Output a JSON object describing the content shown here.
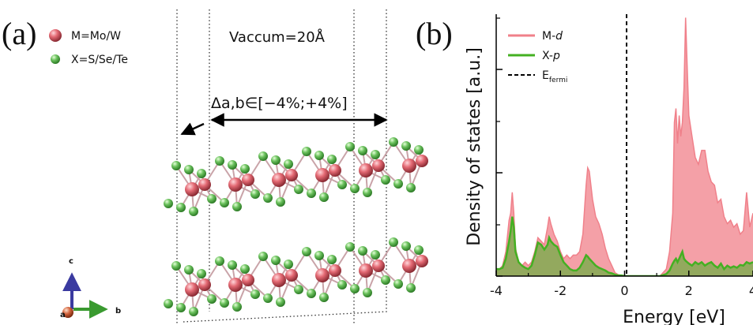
{
  "panel_a": {
    "label": "(a)",
    "legend": [
      {
        "text": "M=Mo/W",
        "color": "#e46a74"
      },
      {
        "text": "X=S/Se/Te",
        "color": "#66c05c"
      }
    ],
    "vacuum_label": "Vaccum=20Å",
    "strain_label": "Δa,b∈[−4%;+4%]",
    "axes": {
      "c": "c",
      "a": "a",
      "b": "b"
    }
  },
  "panel_b": {
    "label": "(b)",
    "legend": [
      {
        "name": "M-",
        "sub": "d",
        "color": "#f0808a"
      },
      {
        "name": "X-",
        "sub": "p",
        "color": "#44b022"
      },
      {
        "name": "E",
        "sub": "fermi",
        "color": "#000000"
      }
    ]
  },
  "chart_data": {
    "type": "area",
    "xlabel": "Energy [eV]",
    "ylabel": "Density of states [a.u.]",
    "xlim": [
      -4,
      4
    ],
    "x_ticks": [
      "-4",
      "-2",
      "0",
      "2",
      "4"
    ],
    "y_tick_labels": "hidden",
    "fermi_level": 0,
    "series": [
      {
        "name": "M-d",
        "color": "#f0808a",
        "x": [
          -4.0,
          -3.9,
          -3.8,
          -3.7,
          -3.6,
          -3.55,
          -3.5,
          -3.45,
          -3.4,
          -3.3,
          -3.2,
          -3.1,
          -3.0,
          -2.9,
          -2.8,
          -2.7,
          -2.6,
          -2.5,
          -2.4,
          -2.35,
          -2.3,
          -2.2,
          -2.1,
          -2.0,
          -1.9,
          -1.8,
          -1.7,
          -1.6,
          -1.5,
          -1.4,
          -1.3,
          -1.2,
          -1.15,
          -1.1,
          -1.0,
          -0.9,
          -0.8,
          -0.7,
          -0.6,
          -0.5,
          -0.4,
          -0.3,
          -0.2,
          -0.1,
          0.0,
          0.2,
          0.5,
          0.8,
          1.1,
          1.3,
          1.4,
          1.5,
          1.55,
          1.6,
          1.65,
          1.7,
          1.75,
          1.8,
          1.85,
          1.9,
          1.95,
          2.0,
          2.1,
          2.2,
          2.3,
          2.4,
          2.5,
          2.6,
          2.7,
          2.8,
          2.9,
          3.0,
          3.1,
          3.2,
          3.3,
          3.4,
          3.5,
          3.6,
          3.7,
          3.8,
          3.9,
          4.0
        ],
        "values": [
          0.1,
          0.1,
          0.15,
          0.35,
          0.8,
          0.9,
          1.2,
          0.9,
          0.4,
          0.2,
          0.15,
          0.2,
          0.15,
          0.2,
          0.35,
          0.55,
          0.5,
          0.45,
          0.7,
          0.85,
          0.75,
          0.6,
          0.5,
          0.35,
          0.25,
          0.3,
          0.25,
          0.3,
          0.3,
          0.35,
          0.6,
          1.3,
          1.55,
          1.5,
          1.1,
          0.85,
          0.75,
          0.6,
          0.4,
          0.25,
          0.15,
          0.05,
          0.02,
          0.01,
          0.0,
          0.0,
          0.0,
          0.0,
          0.0,
          0.1,
          0.35,
          0.9,
          2.2,
          2.4,
          1.9,
          2.3,
          2.0,
          2.2,
          2.7,
          3.7,
          3.0,
          2.3,
          2.0,
          1.7,
          1.6,
          1.8,
          1.8,
          1.5,
          1.35,
          1.3,
          1.05,
          1.1,
          0.85,
          0.75,
          0.8,
          0.7,
          0.75,
          0.6,
          0.65,
          1.2,
          0.7,
          0.9
        ]
      },
      {
        "name": "X-p",
        "color": "#44b022",
        "x": [
          -4.0,
          -3.9,
          -3.8,
          -3.7,
          -3.6,
          -3.55,
          -3.5,
          -3.45,
          -3.4,
          -3.3,
          -3.2,
          -3.1,
          -3.0,
          -2.9,
          -2.8,
          -2.7,
          -2.6,
          -2.5,
          -2.4,
          -2.35,
          -2.3,
          -2.2,
          -2.1,
          -2.0,
          -1.9,
          -1.8,
          -1.7,
          -1.6,
          -1.5,
          -1.4,
          -1.3,
          -1.2,
          -1.15,
          -1.1,
          -1.0,
          -0.9,
          -0.8,
          -0.7,
          -0.6,
          -0.5,
          -0.4,
          -0.3,
          -0.2,
          -0.1,
          0.0,
          0.2,
          0.5,
          0.8,
          1.1,
          1.3,
          1.4,
          1.5,
          1.55,
          1.6,
          1.65,
          1.7,
          1.75,
          1.8,
          1.85,
          1.9,
          1.95,
          2.0,
          2.1,
          2.2,
          2.3,
          2.4,
          2.5,
          2.6,
          2.7,
          2.8,
          2.9,
          3.0,
          3.1,
          3.2,
          3.3,
          3.4,
          3.5,
          3.6,
          3.7,
          3.8,
          3.9,
          4.0
        ],
        "values": [
          0.1,
          0.1,
          0.12,
          0.25,
          0.5,
          0.65,
          0.85,
          0.7,
          0.35,
          0.2,
          0.15,
          0.12,
          0.1,
          0.15,
          0.3,
          0.48,
          0.45,
          0.38,
          0.45,
          0.55,
          0.5,
          0.45,
          0.42,
          0.3,
          0.2,
          0.15,
          0.1,
          0.08,
          0.08,
          0.12,
          0.2,
          0.3,
          0.28,
          0.25,
          0.2,
          0.15,
          0.12,
          0.1,
          0.08,
          0.05,
          0.04,
          0.02,
          0.01,
          0.01,
          0.0,
          0.0,
          0.0,
          0.0,
          0.0,
          0.03,
          0.08,
          0.18,
          0.22,
          0.25,
          0.2,
          0.25,
          0.3,
          0.35,
          0.25,
          0.22,
          0.2,
          0.18,
          0.15,
          0.2,
          0.17,
          0.2,
          0.15,
          0.18,
          0.2,
          0.15,
          0.12,
          0.18,
          0.1,
          0.15,
          0.12,
          0.14,
          0.12,
          0.16,
          0.15,
          0.2,
          0.18,
          0.2
        ]
      }
    ]
  }
}
